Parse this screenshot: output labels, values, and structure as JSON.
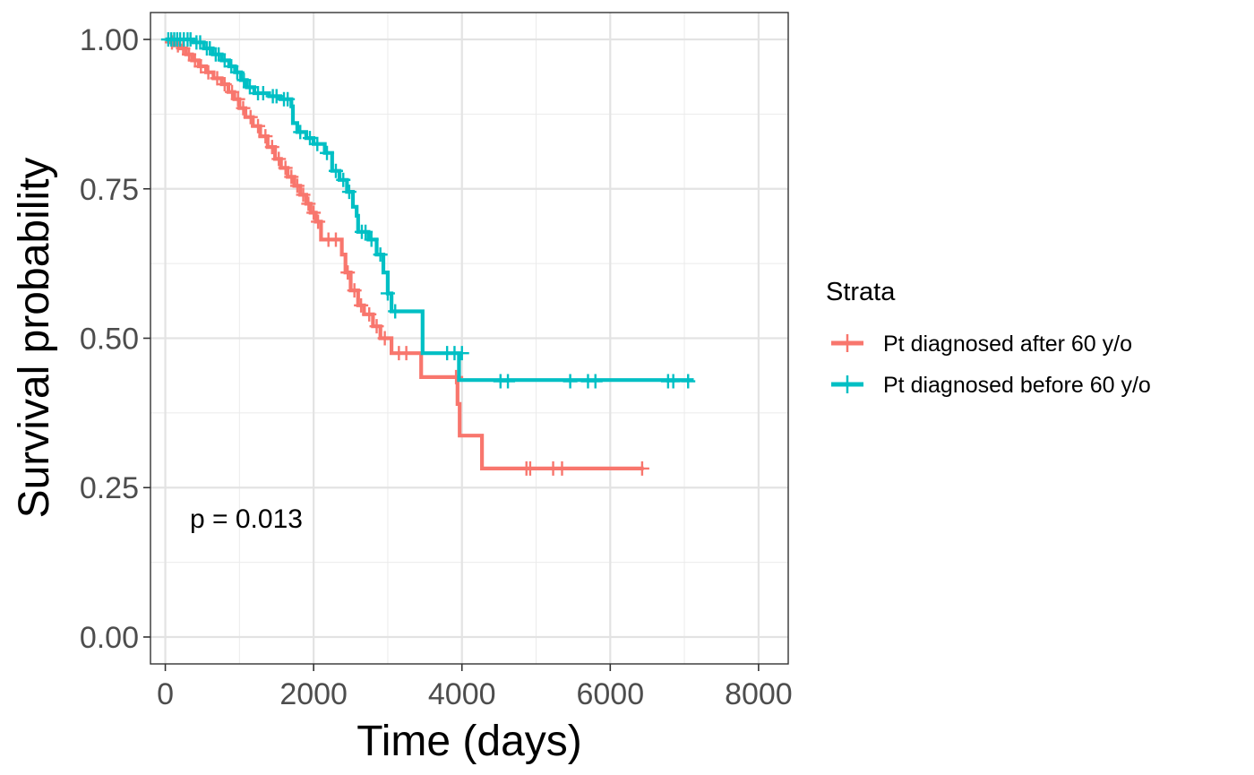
{
  "chart_data": {
    "type": "line",
    "subtype": "kaplan-meier survival curve",
    "xlabel": "Time (days)",
    "ylabel": "Survival probability",
    "xlim": [
      -200,
      8400
    ],
    "ylim": [
      -0.045,
      1.045
    ],
    "x_ticks": [
      0,
      2000,
      4000,
      6000,
      8000
    ],
    "x_tick_labels": [
      "0",
      "2000",
      "4000",
      "6000",
      "8000"
    ],
    "y_ticks": [
      0,
      0.25,
      0.5,
      0.75,
      1.0
    ],
    "y_tick_labels": [
      "0.00",
      "0.25",
      "0.50",
      "0.75",
      "1.00"
    ],
    "grid": true,
    "legend": {
      "title": "Strata",
      "position": "right"
    },
    "annotation": "p = 0.013",
    "series": [
      {
        "name": "Pt diagnosed after 60 y/o",
        "color": "#F8766D",
        "steps": [
          [
            0,
            1.0
          ],
          [
            60,
            0.995
          ],
          [
            120,
            0.99
          ],
          [
            200,
            0.985
          ],
          [
            280,
            0.975
          ],
          [
            360,
            0.965
          ],
          [
            450,
            0.955
          ],
          [
            550,
            0.945
          ],
          [
            650,
            0.935
          ],
          [
            760,
            0.925
          ],
          [
            850,
            0.912
          ],
          [
            930,
            0.9
          ],
          [
            1000,
            0.885
          ],
          [
            1080,
            0.87
          ],
          [
            1180,
            0.855
          ],
          [
            1280,
            0.838
          ],
          [
            1380,
            0.82
          ],
          [
            1480,
            0.8
          ],
          [
            1560,
            0.785
          ],
          [
            1650,
            0.77
          ],
          [
            1740,
            0.755
          ],
          [
            1820,
            0.74
          ],
          [
            1900,
            0.725
          ],
          [
            1960,
            0.71
          ],
          [
            2030,
            0.695
          ],
          [
            2100,
            0.665
          ],
          [
            2380,
            0.64
          ],
          [
            2430,
            0.61
          ],
          [
            2500,
            0.58
          ],
          [
            2600,
            0.555
          ],
          [
            2680,
            0.54
          ],
          [
            2800,
            0.52
          ],
          [
            2900,
            0.5
          ],
          [
            3050,
            0.475
          ],
          [
            3450,
            0.435
          ],
          [
            3940,
            0.39
          ],
          [
            3970,
            0.337
          ],
          [
            4270,
            0.282
          ],
          [
            6450,
            0.282
          ]
        ],
        "censored": [
          [
            90,
            0.995
          ],
          [
            170,
            0.99
          ],
          [
            240,
            0.985
          ],
          [
            320,
            0.975
          ],
          [
            400,
            0.965
          ],
          [
            480,
            0.955
          ],
          [
            580,
            0.945
          ],
          [
            700,
            0.935
          ],
          [
            800,
            0.925
          ],
          [
            900,
            0.912
          ],
          [
            980,
            0.9
          ],
          [
            1050,
            0.885
          ],
          [
            1150,
            0.87
          ],
          [
            1250,
            0.855
          ],
          [
            1350,
            0.838
          ],
          [
            1440,
            0.82
          ],
          [
            1530,
            0.8
          ],
          [
            1620,
            0.785
          ],
          [
            1700,
            0.77
          ],
          [
            1780,
            0.755
          ],
          [
            1860,
            0.74
          ],
          [
            1930,
            0.725
          ],
          [
            2000,
            0.71
          ],
          [
            2060,
            0.695
          ],
          [
            2200,
            0.665
          ],
          [
            2300,
            0.665
          ],
          [
            2460,
            0.61
          ],
          [
            2550,
            0.58
          ],
          [
            2640,
            0.555
          ],
          [
            2750,
            0.54
          ],
          [
            2850,
            0.52
          ],
          [
            2960,
            0.5
          ],
          [
            3150,
            0.475
          ],
          [
            3250,
            0.475
          ],
          [
            3920,
            0.435
          ],
          [
            4870,
            0.282
          ],
          [
            4920,
            0.282
          ],
          [
            5230,
            0.282
          ],
          [
            5350,
            0.282
          ],
          [
            6430,
            0.282
          ]
        ]
      },
      {
        "name": "Pt diagnosed before 60 y/o",
        "color": "#00BFC4",
        "steps": [
          [
            0,
            1.0
          ],
          [
            380,
            0.995
          ],
          [
            520,
            0.985
          ],
          [
            640,
            0.975
          ],
          [
            760,
            0.965
          ],
          [
            860,
            0.955
          ],
          [
            940,
            0.945
          ],
          [
            1020,
            0.932
          ],
          [
            1100,
            0.92
          ],
          [
            1200,
            0.91
          ],
          [
            1400,
            0.905
          ],
          [
            1550,
            0.9
          ],
          [
            1700,
            0.888
          ],
          [
            1720,
            0.86
          ],
          [
            1780,
            0.845
          ],
          [
            1900,
            0.835
          ],
          [
            2000,
            0.825
          ],
          [
            2150,
            0.81
          ],
          [
            2250,
            0.78
          ],
          [
            2350,
            0.765
          ],
          [
            2450,
            0.745
          ],
          [
            2530,
            0.72
          ],
          [
            2580,
            0.705
          ],
          [
            2600,
            0.678
          ],
          [
            2740,
            0.665
          ],
          [
            2850,
            0.64
          ],
          [
            2940,
            0.61
          ],
          [
            3000,
            0.575
          ],
          [
            3050,
            0.545
          ],
          [
            3470,
            0.475
          ],
          [
            3960,
            0.43
          ],
          [
            7100,
            0.428
          ]
        ],
        "censored": [
          [
            40,
            1.0
          ],
          [
            80,
            1.0
          ],
          [
            120,
            1.0
          ],
          [
            160,
            1.0
          ],
          [
            200,
            1.0
          ],
          [
            250,
            1.0
          ],
          [
            300,
            1.0
          ],
          [
            340,
            1.0
          ],
          [
            420,
            0.995
          ],
          [
            470,
            0.995
          ],
          [
            560,
            0.985
          ],
          [
            600,
            0.985
          ],
          [
            680,
            0.975
          ],
          [
            720,
            0.975
          ],
          [
            800,
            0.965
          ],
          [
            890,
            0.955
          ],
          [
            970,
            0.945
          ],
          [
            1060,
            0.932
          ],
          [
            1140,
            0.92
          ],
          [
            1250,
            0.91
          ],
          [
            1320,
            0.91
          ],
          [
            1450,
            0.905
          ],
          [
            1500,
            0.905
          ],
          [
            1600,
            0.9
          ],
          [
            1650,
            0.9
          ],
          [
            1820,
            0.845
          ],
          [
            1950,
            0.835
          ],
          [
            2050,
            0.825
          ],
          [
            2180,
            0.81
          ],
          [
            2300,
            0.78
          ],
          [
            2400,
            0.765
          ],
          [
            2480,
            0.745
          ],
          [
            2650,
            0.678
          ],
          [
            2700,
            0.678
          ],
          [
            2780,
            0.665
          ],
          [
            2900,
            0.64
          ],
          [
            3000,
            0.575
          ],
          [
            3100,
            0.545
          ],
          [
            3800,
            0.475
          ],
          [
            3900,
            0.475
          ],
          [
            4000,
            0.475
          ],
          [
            4520,
            0.428
          ],
          [
            4620,
            0.428
          ],
          [
            5460,
            0.428
          ],
          [
            5700,
            0.428
          ],
          [
            5800,
            0.428
          ],
          [
            6780,
            0.428
          ],
          [
            6850,
            0.428
          ],
          [
            7050,
            0.428
          ]
        ]
      }
    ]
  }
}
